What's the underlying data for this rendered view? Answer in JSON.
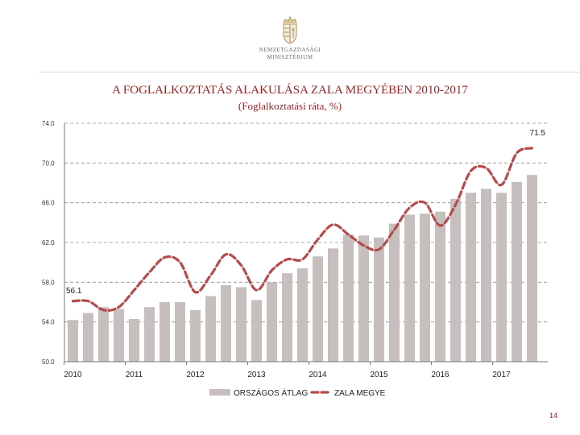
{
  "header": {
    "ministry_line1": "NEMZETGAZDASÁGI",
    "ministry_line2": "MINISZTÉRIUM",
    "logo_icon": "hungarian-coat-of-arms-icon"
  },
  "page_number": "14",
  "colors": {
    "bar": "#c6bfbe",
    "line": "#b54b4b",
    "title": "#9b1f1f",
    "grid": "#8c8c8c"
  },
  "chart_data": {
    "type": "bar",
    "title": "A FOGLALKOZTATÁS ALAKULÁSA ZALA MEGYÉBEN 2010-2017",
    "subtitle": "(Foglalkoztatási ráta, %)",
    "ylim": [
      50,
      74
    ],
    "yticks": [
      "74.0",
      "70.0",
      "66.0",
      "62.0",
      "58.0",
      "54.0",
      "50.0"
    ],
    "ytick_values": [
      74,
      70,
      66,
      62,
      58,
      54,
      50
    ],
    "grid": "horizontal dashed",
    "legend_position": "bottom",
    "year_labels": [
      "2010",
      "2011",
      "2012",
      "2013",
      "2014",
      "2015",
      "2016",
      "2017"
    ],
    "periods_per_year": 4,
    "series": [
      {
        "name": "ORSZÁGOS ÁTLAG",
        "kind": "bar",
        "values": [
          54.2,
          54.9,
          55.5,
          55.3,
          54.3,
          55.5,
          56.0,
          56.0,
          55.2,
          56.6,
          57.7,
          57.5,
          56.2,
          58.0,
          58.9,
          59.4,
          60.6,
          61.4,
          62.8,
          62.7,
          62.5,
          63.9,
          64.8,
          64.9,
          65.1,
          66.4,
          67.0,
          67.4,
          67.0,
          68.1,
          68.8
        ]
      },
      {
        "name": "ZALA MEGYE",
        "kind": "line",
        "values": [
          56.1,
          56.1,
          55.2,
          55.5,
          57.2,
          59.0,
          60.5,
          60.0,
          57.0,
          58.7,
          60.8,
          59.7,
          57.2,
          59.2,
          60.3,
          60.3,
          62.3,
          63.8,
          62.8,
          61.7,
          61.3,
          63.3,
          65.5,
          66.0,
          63.7,
          65.8,
          69.2,
          69.5,
          67.8,
          71.0,
          71.5
        ]
      }
    ],
    "annotations": [
      {
        "text": "56.1",
        "series": "ZALA MEGYE",
        "index": 0
      },
      {
        "text": "71.5",
        "series": "ZALA MEGYE",
        "index": 30
      }
    ]
  }
}
